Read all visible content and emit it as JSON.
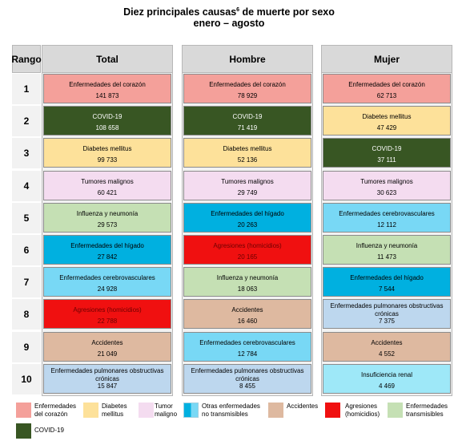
{
  "title": {
    "main": "Diez principales causas",
    "sup": "6",
    "rest": " de muerte por sexo",
    "period": "enero – agosto"
  },
  "headers": {
    "rank": "Rango",
    "total": "Total",
    "male": "Hombre",
    "female": "Mujer"
  },
  "ranks": [
    "1",
    "2",
    "3",
    "4",
    "5",
    "6",
    "7",
    "8",
    "9",
    "10"
  ],
  "colors": {
    "corazon": "#f4a09a",
    "covid": "#385623",
    "diabetes": "#fde19a",
    "tumores": "#f4dcf0",
    "influenza": "#c5e0b4",
    "higado": "#00b0e0",
    "cerebro": "#78d8f5",
    "homicidio": "#f01010",
    "accidentes": "#deb9a0",
    "pulmonares": "#bdd7ee",
    "renal": "#9ee8f8"
  },
  "total": [
    {
      "name": "Enfermedades del corazón",
      "value": "141 873",
      "key": "corazon"
    },
    {
      "name": "COVID-19",
      "value": "108 658",
      "key": "covid"
    },
    {
      "name": "Diabetes mellitus",
      "value": "99 733",
      "key": "diabetes"
    },
    {
      "name": "Tumores malignos",
      "value": "60 421",
      "key": "tumores"
    },
    {
      "name": "Influenza y neumonía",
      "value": "29 573",
      "key": "influenza"
    },
    {
      "name": "Enfermedades del hígado",
      "value": "27 842",
      "key": "higado"
    },
    {
      "name": "Enfermedades cerebrovasculares",
      "value": "24 928",
      "key": "cerebro"
    },
    {
      "name": "Agresiones (homicidios)",
      "value": "22 788",
      "key": "homicidio"
    },
    {
      "name": "Accidentes",
      "value": "21 049",
      "key": "accidentes"
    },
    {
      "name": "Enfermedades pulmonares obstructivas crónicas",
      "value": "15 847",
      "key": "pulmonares"
    }
  ],
  "male": [
    {
      "name": "Enfermedades del corazón",
      "value": "78 929",
      "key": "corazon"
    },
    {
      "name": "COVID-19",
      "value": "71 419",
      "key": "covid"
    },
    {
      "name": "Diabetes mellitus",
      "value": "52 136",
      "key": "diabetes"
    },
    {
      "name": "Tumores malignos",
      "value": "29 749",
      "key": "tumores"
    },
    {
      "name": "Enfermedades del hígado",
      "value": "20 263",
      "key": "higado"
    },
    {
      "name": "Agresiones (homicidios)",
      "value": "20 165",
      "key": "homicidio"
    },
    {
      "name": "Influenza y neumonía",
      "value": "18 063",
      "key": "influenza"
    },
    {
      "name": "Accidentes",
      "value": "16 460",
      "key": "accidentes"
    },
    {
      "name": "Enfermedades cerebrovasculares",
      "value": "12 784",
      "key": "cerebro"
    },
    {
      "name": "Enfermedades pulmonares obstructivas crónicas",
      "value": "8 455",
      "key": "pulmonares"
    }
  ],
  "female": [
    {
      "name": "Enfermedades del corazón",
      "value": "62 713",
      "key": "corazon"
    },
    {
      "name": "Diabetes mellitus",
      "value": "47 429",
      "key": "diabetes"
    },
    {
      "name": "COVID-19",
      "value": "37 111",
      "key": "covid"
    },
    {
      "name": "Tumores malignos",
      "value": "30 623",
      "key": "tumores"
    },
    {
      "name": "Enfermedades cerebrovasculares",
      "value": "12 112",
      "key": "cerebro"
    },
    {
      "name": "Influenza y neumonía",
      "value": "11 473",
      "key": "influenza"
    },
    {
      "name": "Enfermedades del hígado",
      "value": "7 544",
      "key": "higado"
    },
    {
      "name": "Enfermedades pulmonares obstructivas crónicas",
      "value": "7 375",
      "key": "pulmonares"
    },
    {
      "name": "Accidentes",
      "value": "4 552",
      "key": "accidentes"
    },
    {
      "name": "Insuficiencia renal",
      "value": "4 469",
      "key": "renal"
    }
  ],
  "legend": [
    {
      "label1": "Enfermedades",
      "label2": "del corazón",
      "key": "corazon"
    },
    {
      "label1": "Diabetes",
      "label2": "mellitus",
      "key": "diabetes"
    },
    {
      "label1": "Tumor",
      "label2": "maligno",
      "key": "tumores"
    },
    {
      "label1": "Otras enfermedades",
      "label2": "no transmisibles",
      "key": "otras"
    },
    {
      "label1": "Accidentes",
      "label2": "",
      "key": "accidentes"
    },
    {
      "label1": "Agresiones",
      "label2": "(homicidios)",
      "key": "homicidio"
    },
    {
      "label1": "Enfermedades",
      "label2": "transmisibles",
      "key": "influenza"
    },
    {
      "label1": "COVID-19",
      "label2": "",
      "key": "covid"
    }
  ]
}
